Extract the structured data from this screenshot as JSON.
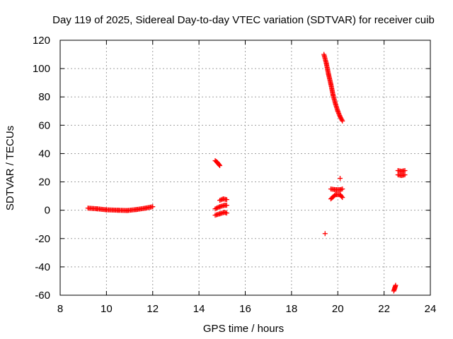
{
  "chart_data": {
    "type": "scatter",
    "title": "Day 119 of 2025, Sidereal Day-to-day VTEC variation (SDTVAR) for receiver cuib",
    "xlabel": "GPS time / hours",
    "ylabel": "SDTVAR / TECUs",
    "xlim": [
      8,
      24
    ],
    "ylim": [
      -60,
      120
    ],
    "xticks": [
      8,
      10,
      12,
      14,
      16,
      18,
      20,
      22,
      24
    ],
    "yticks": [
      -60,
      -40,
      -20,
      0,
      20,
      40,
      60,
      80,
      100,
      120
    ],
    "grid": true,
    "marker": "+",
    "series_color": "#ff0000",
    "segments": [
      {
        "name": "arc-1",
        "x_start": 9.2,
        "x_end": 12.0,
        "points": [
          [
            9.2,
            1.5
          ],
          [
            9.6,
            1.0
          ],
          [
            10.0,
            0.3
          ],
          [
            10.5,
            0.0
          ],
          [
            10.9,
            -0.2
          ],
          [
            11.3,
            0.5
          ],
          [
            11.7,
            1.5
          ],
          [
            12.0,
            2.5
          ]
        ]
      },
      {
        "name": "arc-2",
        "x_start": 14.7,
        "x_end": 14.9,
        "points": [
          [
            14.7,
            35
          ],
          [
            14.78,
            34
          ],
          [
            14.85,
            32.5
          ],
          [
            14.9,
            31.5
          ]
        ]
      },
      {
        "name": "arc-3",
        "x_start": 14.7,
        "x_end": 15.2,
        "points": [
          [
            14.7,
            -3.5
          ],
          [
            14.9,
            -2.5
          ],
          [
            15.1,
            -1.5
          ],
          [
            15.2,
            -2
          ]
        ]
      },
      {
        "name": "arc-4",
        "x_start": 14.7,
        "x_end": 15.2,
        "points": [
          [
            14.7,
            1
          ],
          [
            14.9,
            2.5
          ],
          [
            15.1,
            3.5
          ],
          [
            15.2,
            3.5
          ]
        ]
      },
      {
        "name": "arc-5",
        "x_start": 14.9,
        "x_end": 15.2,
        "points": [
          [
            14.9,
            7
          ],
          [
            15.05,
            8
          ],
          [
            15.2,
            7.5
          ]
        ]
      },
      {
        "name": "arc-6",
        "x_start": 19.4,
        "x_end": 20.2,
        "points": [
          [
            19.4,
            110
          ],
          [
            19.5,
            104
          ],
          [
            19.6,
            96
          ],
          [
            19.7,
            89
          ],
          [
            19.8,
            81
          ],
          [
            19.9,
            75
          ],
          [
            20.0,
            70
          ],
          [
            20.1,
            66
          ],
          [
            20.2,
            63
          ]
        ]
      },
      {
        "name": "arc-7",
        "x_start": 19.4,
        "x_end": 19.5,
        "points": [
          [
            19.45,
            -16.5
          ]
        ]
      },
      {
        "name": "arc-8",
        "x_start": 19.7,
        "x_end": 20.2,
        "points": [
          [
            19.7,
            15
          ],
          [
            19.9,
            14.5
          ],
          [
            20.1,
            14.5
          ],
          [
            20.2,
            15
          ]
        ]
      },
      {
        "name": "arc-9",
        "x_start": 19.7,
        "x_end": 20.2,
        "points": [
          [
            19.7,
            8
          ],
          [
            19.9,
            11
          ],
          [
            20.1,
            11
          ],
          [
            20.2,
            9
          ]
        ]
      },
      {
        "name": "arc-10",
        "x_start": 20.05,
        "x_end": 20.15,
        "points": [
          [
            20.1,
            22.5
          ]
        ]
      },
      {
        "name": "arc-11",
        "x_start": 22.4,
        "x_end": 22.5,
        "points": [
          [
            22.42,
            -57
          ],
          [
            22.46,
            -55
          ],
          [
            22.5,
            -53
          ]
        ]
      },
      {
        "name": "arc-12",
        "x_start": 22.6,
        "x_end": 22.9,
        "points": [
          [
            22.6,
            25
          ],
          [
            22.75,
            24.5
          ],
          [
            22.9,
            25
          ]
        ]
      },
      {
        "name": "arc-13",
        "x_start": 22.6,
        "x_end": 22.9,
        "points": [
          [
            22.6,
            28
          ],
          [
            22.75,
            27.5
          ],
          [
            22.9,
            28
          ]
        ]
      }
    ]
  }
}
